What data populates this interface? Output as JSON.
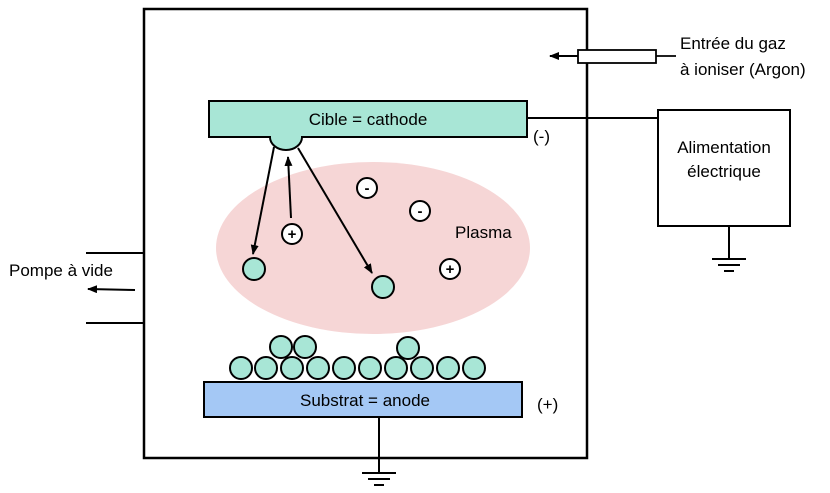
{
  "labels": {
    "gas_inlet_line1": "Entrée du gaz",
    "gas_inlet_line2": "à ioniser (Argon)",
    "target": "Cible = cathode",
    "cathode_polarity": "(-)",
    "power_line1": "Alimentation",
    "power_line2": "électrique",
    "plasma": "Plasma",
    "vacuum_pump": "Pompe à vide",
    "substrate": "Substrat = anode",
    "anode_polarity": "(+)"
  },
  "ions": {
    "negative_sign": "-",
    "positive_sign": "+"
  },
  "colors": {
    "target_fill": "#a8e6d6",
    "substrate_fill": "#a4c8f5",
    "plasma_fill": "#f6d6d6",
    "atom_fill": "#a8e6d6",
    "stroke": "#000000"
  }
}
